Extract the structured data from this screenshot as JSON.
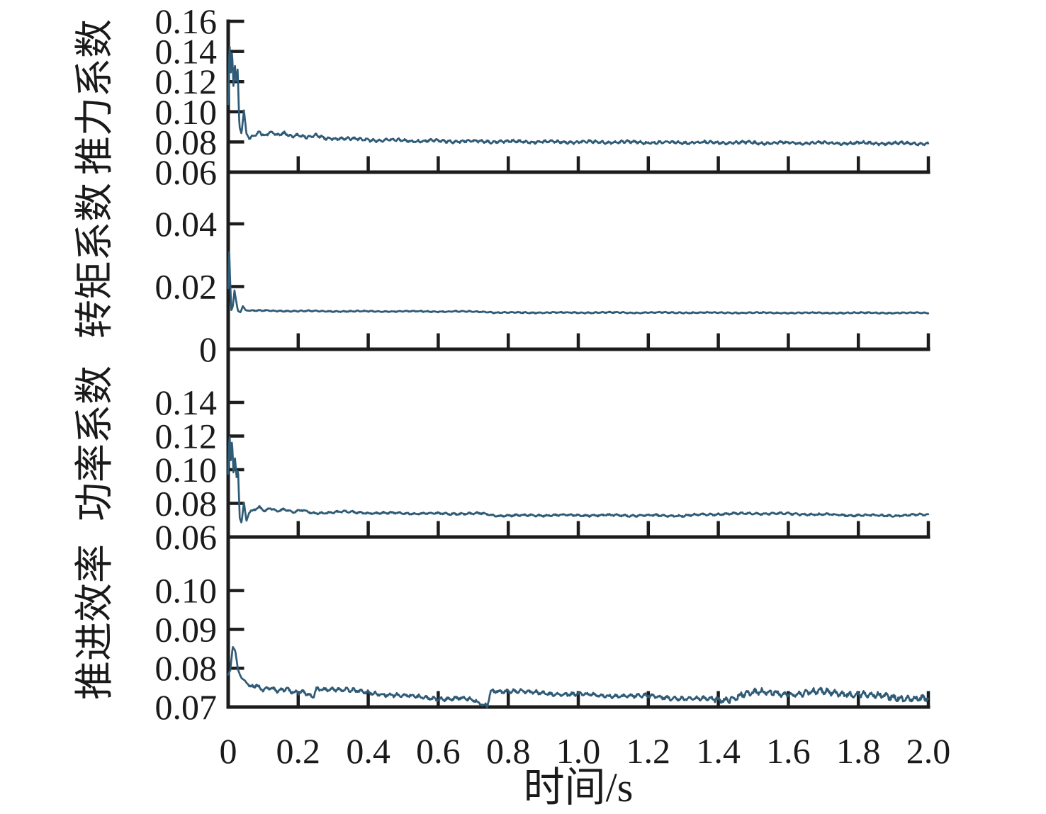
{
  "figure": {
    "background": "#ffffff",
    "axis_color": "#1c1c1c",
    "text_color": "#1a1a1a"
  },
  "chart_data": {
    "type": "line",
    "title": "",
    "xlabel": "时间/s",
    "x_range": [
      0,
      2.0
    ],
    "x_ticks": [
      0,
      0.2,
      0.4,
      0.6,
      0.8,
      1.0,
      1.2,
      1.4,
      1.6,
      1.8,
      2.0
    ],
    "x_tick_labels": [
      "0",
      "0.2",
      "0.4",
      "0.6",
      "0.8",
      "1.0",
      "1.2",
      "1.4",
      "1.6",
      "1.8",
      "2.0"
    ],
    "line_color": "#2f5b76",
    "grid": false,
    "legend": "none",
    "subplots": [
      {
        "ylabel": "推力系数",
        "ylim": [
          0.06,
          0.16
        ],
        "yticks": [
          0.06,
          0.08,
          0.1,
          0.12,
          0.14,
          0.16
        ],
        "ytick_labels": [
          "0.06",
          "0.08",
          "0.10",
          "0.12",
          "0.14",
          "0.16"
        ],
        "steady_value": 0.08,
        "peak_value": 0.147,
        "keypoints": [
          [
            0,
            0.105
          ],
          [
            0.004,
            0.147
          ],
          [
            0.007,
            0.124
          ],
          [
            0.011,
            0.141
          ],
          [
            0.015,
            0.117
          ],
          [
            0.019,
            0.132
          ],
          [
            0.023,
            0.119
          ],
          [
            0.027,
            0.128
          ],
          [
            0.032,
            0.09
          ],
          [
            0.038,
            0.0855
          ],
          [
            0.045,
            0.101
          ],
          [
            0.052,
            0.0855
          ],
          [
            0.06,
            0.0825
          ],
          [
            0.075,
            0.0845
          ],
          [
            0.09,
            0.0868
          ],
          [
            0.105,
            0.0842
          ],
          [
            0.12,
            0.0865
          ],
          [
            0.14,
            0.084
          ],
          [
            0.16,
            0.0858
          ],
          [
            0.18,
            0.0838
          ],
          [
            0.2,
            0.085
          ],
          [
            0.225,
            0.0832
          ],
          [
            0.25,
            0.0842
          ],
          [
            0.28,
            0.0822
          ],
          [
            0.32,
            0.0825
          ],
          [
            0.38,
            0.0815
          ],
          [
            0.45,
            0.0812
          ],
          [
            0.55,
            0.0808
          ],
          [
            0.7,
            0.0804
          ],
          [
            0.9,
            0.0801
          ],
          [
            1.1,
            0.0799
          ],
          [
            1.35,
            0.0796
          ],
          [
            1.6,
            0.0794
          ],
          [
            1.8,
            0.0792
          ],
          [
            2,
            0.079
          ]
        ],
        "noise": {
          "amplitude": 0.0011,
          "f1": 55,
          "f2": 9,
          "seed": 3,
          "start": 0.06
        }
      },
      {
        "ylabel": "转矩系数",
        "ylim": [
          0,
          0.0565
        ],
        "yticks": [
          0,
          0.02,
          0.04
        ],
        "ytick_labels": [
          "0",
          "0.02",
          "0.04"
        ],
        "steady_value": 0.0118,
        "peak_value": 0.031,
        "keypoints": [
          [
            0,
            0.0195
          ],
          [
            0.003,
            0.031
          ],
          [
            0.006,
            0.0205
          ],
          [
            0.009,
            0.0125
          ],
          [
            0.013,
            0.0135
          ],
          [
            0.018,
            0.0188
          ],
          [
            0.023,
            0.0152
          ],
          [
            0.028,
            0.0122
          ],
          [
            0.035,
            0.0118
          ],
          [
            0.042,
            0.0138
          ],
          [
            0.05,
            0.0124
          ],
          [
            0.07,
            0.0123
          ],
          [
            0.1,
            0.0123
          ],
          [
            0.2,
            0.0122
          ],
          [
            0.35,
            0.0121
          ],
          [
            0.5,
            0.0121
          ],
          [
            0.73,
            0.012
          ],
          [
            0.76,
            0.0117
          ],
          [
            1,
            0.0117
          ],
          [
            1.3,
            0.0117
          ],
          [
            1.6,
            0.0116
          ],
          [
            2,
            0.0116
          ]
        ],
        "noise": {
          "amplitude": 0.00022,
          "f1": 50,
          "f2": 7,
          "seed": 5,
          "start": 0.05
        }
      },
      {
        "ylabel": "功率系数",
        "ylim": [
          0.06,
          0.1716
        ],
        "yticks": [
          0.06,
          0.08,
          0.1,
          0.12,
          0.14
        ],
        "ytick_labels": [
          "0.06",
          "0.08",
          "0.10",
          "0.12",
          "0.14"
        ],
        "steady_value": 0.073,
        "peak_value": 0.123,
        "keypoints": [
          [
            0,
            0.0975
          ],
          [
            0.004,
            0.1225
          ],
          [
            0.007,
            0.104
          ],
          [
            0.011,
            0.118
          ],
          [
            0.015,
            0.0985
          ],
          [
            0.019,
            0.108
          ],
          [
            0.024,
            0.0955
          ],
          [
            0.028,
            0.1005
          ],
          [
            0.033,
            0.0715
          ],
          [
            0.038,
            0.0685
          ],
          [
            0.045,
            0.0805
          ],
          [
            0.052,
            0.0695
          ],
          [
            0.06,
            0.0745
          ],
          [
            0.075,
            0.0762
          ],
          [
            0.09,
            0.0775
          ],
          [
            0.105,
            0.0752
          ],
          [
            0.12,
            0.0772
          ],
          [
            0.14,
            0.0755
          ],
          [
            0.16,
            0.0768
          ],
          [
            0.185,
            0.0748
          ],
          [
            0.21,
            0.0758
          ],
          [
            0.24,
            0.0742
          ],
          [
            0.28,
            0.0745
          ],
          [
            0.33,
            0.075
          ],
          [
            0.4,
            0.0743
          ],
          [
            0.5,
            0.0741
          ],
          [
            0.6,
            0.0739
          ],
          [
            0.73,
            0.0739
          ],
          [
            0.76,
            0.0727
          ],
          [
            0.9,
            0.0729
          ],
          [
            1.1,
            0.0729
          ],
          [
            1.3,
            0.0727
          ],
          [
            1.42,
            0.0738
          ],
          [
            1.55,
            0.074
          ],
          [
            1.68,
            0.0734
          ],
          [
            1.8,
            0.0729
          ],
          [
            1.92,
            0.0727
          ],
          [
            2,
            0.0734
          ]
        ],
        "noise": {
          "amplitude": 0.0007,
          "f1": 45,
          "f2": 8,
          "seed": 8,
          "start": 0.06
        }
      },
      {
        "ylabel": "推进效率",
        "ylim": [
          0.07,
          0.1138
        ],
        "yticks": [
          0.07,
          0.08,
          0.09,
          0.1
        ],
        "ytick_labels": [
          "0.07",
          "0.08",
          "0.09",
          "0.10"
        ],
        "steady_value": 0.073,
        "peak_value": 0.0855,
        "keypoints": [
          [
            0,
            0.0782
          ],
          [
            0.006,
            0.0795
          ],
          [
            0.013,
            0.0855
          ],
          [
            0.02,
            0.0845
          ],
          [
            0.028,
            0.0795
          ],
          [
            0.038,
            0.0775
          ],
          [
            0.05,
            0.0765
          ],
          [
            0.065,
            0.0752
          ],
          [
            0.08,
            0.0758
          ],
          [
            0.1,
            0.0745
          ],
          [
            0.12,
            0.0752
          ],
          [
            0.14,
            0.0742
          ],
          [
            0.165,
            0.0745
          ],
          [
            0.19,
            0.0735
          ],
          [
            0.215,
            0.0738
          ],
          [
            0.242,
            0.0726
          ],
          [
            0.252,
            0.0748
          ],
          [
            0.3,
            0.0746
          ],
          [
            0.36,
            0.0741
          ],
          [
            0.42,
            0.0736
          ],
          [
            0.48,
            0.073
          ],
          [
            0.54,
            0.0726
          ],
          [
            0.6,
            0.0722
          ],
          [
            0.66,
            0.0722
          ],
          [
            0.7,
            0.0717
          ],
          [
            0.725,
            0.0706
          ],
          [
            0.74,
            0.0704
          ],
          [
            0.75,
            0.0743
          ],
          [
            0.82,
            0.074
          ],
          [
            0.92,
            0.0735
          ],
          [
            1.02,
            0.0731
          ],
          [
            1.12,
            0.0729
          ],
          [
            1.22,
            0.0727
          ],
          [
            1.32,
            0.0721
          ],
          [
            1.42,
            0.0719
          ],
          [
            1.47,
            0.0734
          ],
          [
            1.55,
            0.0737
          ],
          [
            1.62,
            0.0734
          ],
          [
            1.7,
            0.0739
          ],
          [
            1.78,
            0.0735
          ],
          [
            1.86,
            0.0727
          ],
          [
            1.94,
            0.0724
          ],
          [
            2,
            0.0721
          ]
        ],
        "noise": {
          "amplitude": 0.0006,
          "f1": 48,
          "f2": 6,
          "seed": 13,
          "start": 0.06,
          "boost": {
            "from": 1.38,
            "factor": 1.6
          }
        }
      }
    ]
  }
}
